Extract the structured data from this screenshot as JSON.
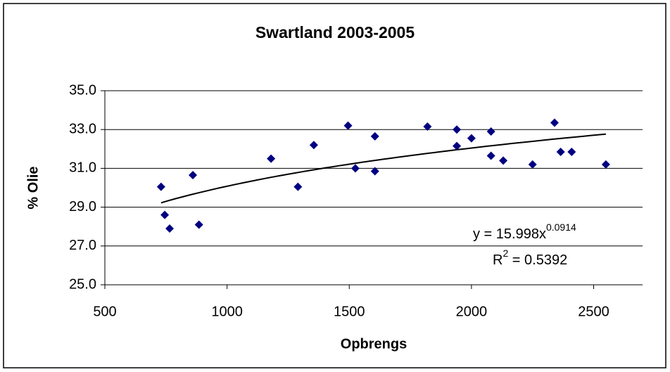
{
  "chart_data": {
    "type": "scatter",
    "title": "Swartland 2003-2005",
    "x_label": "Opbrengs",
    "y_label": "% Olie",
    "series": [
      {
        "color": "#000080",
        "x": [
          730,
          745,
          765,
          860,
          885,
          1180,
          1290,
          1355,
          1495,
          1525,
          1605,
          1605,
          1820,
          1940,
          1940,
          2000,
          2080,
          2080,
          2130,
          2250,
          2340,
          2365,
          2410,
          2550
        ],
        "values": [
          30.05,
          28.6,
          27.9,
          30.65,
          28.1,
          31.5,
          30.05,
          32.2,
          33.2,
          31.0,
          32.65,
          30.85,
          33.15,
          33.0,
          32.15,
          32.55,
          32.9,
          31.65,
          31.4,
          31.2,
          33.35,
          31.85,
          31.85,
          31.2
        ]
      }
    ],
    "trendline": {
      "coefficient": 15.998,
      "exponent": 0.0914,
      "xlim": [
        730,
        2550
      ],
      "color": "#000000"
    },
    "equation_label": "y = 15.998x",
    "exponent_label": "0.0914",
    "r2_label": "R",
    "r2_sup": "2",
    "r2_text": " = 0.5392",
    "xlim": [
      500,
      2700
    ],
    "xticks": [
      500,
      1000,
      1500,
      2000,
      2500
    ],
    "ylim": [
      25,
      35
    ],
    "yticks": [
      {
        "value": 25,
        "label": "25.0"
      },
      {
        "value": 27,
        "label": "27.0"
      },
      {
        "value": 29,
        "label": "29.0"
      },
      {
        "value": 31,
        "label": "31.0"
      },
      {
        "value": 33,
        "label": "33.0"
      },
      {
        "value": 35,
        "label": "35.0"
      }
    ],
    "grid": true
  }
}
